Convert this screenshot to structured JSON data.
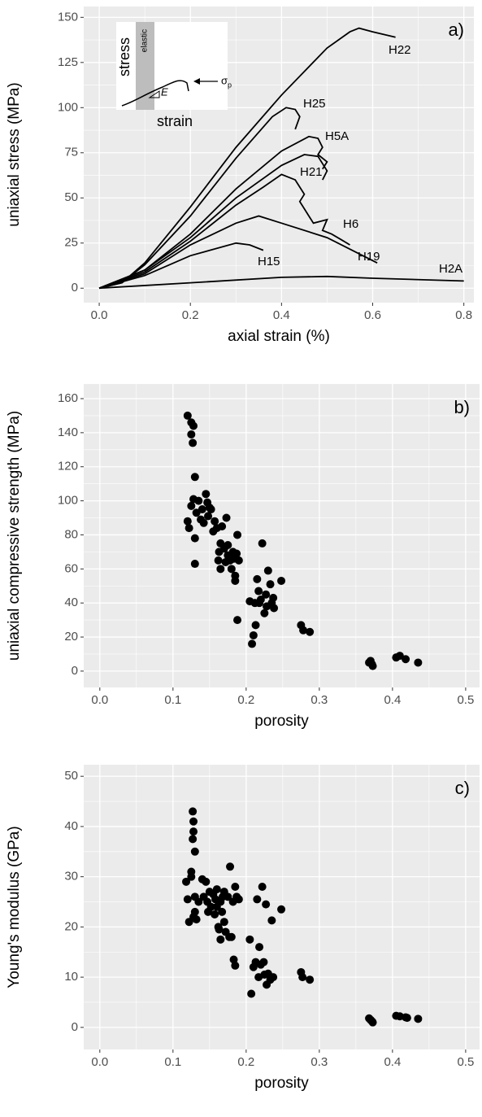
{
  "chart_data": [
    {
      "type": "line",
      "panel_label": "a)",
      "xlabel": "axial strain (%)",
      "ylabel": "uniaxial stress (MPa)",
      "xlim": [
        -0.034,
        0.822
      ],
      "ylim": [
        -8,
        156
      ],
      "xticks": [
        {
          "value": 0,
          "label": "0.0"
        },
        0.2,
        0.4,
        0.6,
        0.8
      ],
      "yticks": [
        0,
        25,
        50,
        75,
        100,
        125,
        150
      ],
      "grid": true,
      "color": "#000000",
      "inset": {
        "ylabel": "stress",
        "xlabel": "strain",
        "band_label": "elastic",
        "slope_label": "E",
        "peak_label": "σ",
        "peak_subscript": "p"
      },
      "series": [
        {
          "name": "H22",
          "x": [
            0,
            0.05,
            0.1,
            0.2,
            0.3,
            0.4,
            0.5,
            0.55,
            0.57,
            0.6,
            0.65
          ],
          "values": [
            0,
            3,
            14,
            45,
            78,
            107,
            133,
            142,
            144,
            142,
            139
          ]
        },
        {
          "name": "H25",
          "x": [
            0,
            0.05,
            0.1,
            0.2,
            0.3,
            0.38,
            0.41,
            0.43,
            0.44,
            0.43
          ],
          "values": [
            0,
            3,
            13,
            40,
            72,
            95,
            100,
            99,
            95,
            88
          ]
        },
        {
          "name": "H5A",
          "x": [
            0,
            0.1,
            0.2,
            0.3,
            0.4,
            0.46,
            0.48,
            0.49,
            0.48,
            0.5,
            0.49
          ],
          "values": [
            0,
            10,
            30,
            55,
            76,
            84,
            83,
            78,
            74,
            70,
            66
          ]
        },
        {
          "name": "H21",
          "x": [
            0,
            0.1,
            0.2,
            0.3,
            0.4,
            0.45,
            0.48,
            0.5,
            0.49
          ],
          "values": [
            0,
            10,
            28,
            50,
            68,
            74,
            73,
            65,
            60
          ]
        },
        {
          "name": "H6",
          "x": [
            0,
            0.1,
            0.2,
            0.3,
            0.36,
            0.4,
            0.43,
            0.45,
            0.44,
            0.46,
            0.47,
            0.5,
            0.49,
            0.51,
            0.53,
            0.55
          ],
          "values": [
            0,
            9,
            26,
            46,
            56,
            63,
            60,
            52,
            48,
            40,
            36,
            38,
            32,
            30,
            27,
            24
          ]
        },
        {
          "name": "H19",
          "x": [
            0,
            0.1,
            0.2,
            0.3,
            0.35,
            0.4,
            0.5,
            0.61
          ],
          "values": [
            0,
            8,
            24,
            36,
            40,
            36,
            28,
            14
          ]
        },
        {
          "name": "H15",
          "x": [
            0,
            0.1,
            0.2,
            0.3,
            0.33,
            0.36
          ],
          "values": [
            0,
            7,
            18,
            25,
            24,
            21
          ]
        },
        {
          "name": "H2A",
          "x": [
            0,
            0.2,
            0.4,
            0.5,
            0.6,
            0.8
          ],
          "values": [
            0,
            3,
            6,
            6.5,
            5.5,
            4
          ]
        }
      ]
    },
    {
      "type": "scatter",
      "panel_label": "b)",
      "xlabel": "porosity",
      "ylabel": "uniaxial compressive strength (MPa)",
      "xlim": [
        -0.022,
        0.519
      ],
      "ylim": [
        -9.6,
        168.6
      ],
      "xticks": [
        {
          "value": 0,
          "label": "0.0"
        },
        0.1,
        0.2,
        0.3,
        0.4,
        0.5
      ],
      "yticks": [
        0,
        20,
        40,
        60,
        80,
        100,
        120,
        140,
        160
      ],
      "grid": true,
      "color": "#000000",
      "x": [
        0.12,
        0.125,
        0.128,
        0.125,
        0.127,
        0.12,
        0.122,
        0.125,
        0.128,
        0.13,
        0.13,
        0.13,
        0.132,
        0.135,
        0.138,
        0.14,
        0.142,
        0.145,
        0.147,
        0.148,
        0.15,
        0.152,
        0.155,
        0.157,
        0.16,
        0.162,
        0.163,
        0.165,
        0.165,
        0.167,
        0.17,
        0.172,
        0.173,
        0.175,
        0.175,
        0.178,
        0.18,
        0.182,
        0.183,
        0.185,
        0.185,
        0.187,
        0.188,
        0.188,
        0.19,
        0.205,
        0.208,
        0.21,
        0.212,
        0.213,
        0.215,
        0.217,
        0.218,
        0.22,
        0.222,
        0.225,
        0.227,
        0.228,
        0.23,
        0.233,
        0.235,
        0.237,
        0.238,
        0.248,
        0.275,
        0.278,
        0.287,
        0.368,
        0.37,
        0.372,
        0.373,
        0.405,
        0.41,
        0.418,
        0.435
      ],
      "values": [
        150,
        146,
        144,
        139,
        134,
        88,
        84,
        97,
        101,
        63,
        78,
        114,
        93,
        100,
        89,
        95,
        87,
        104,
        99,
        91,
        96,
        95,
        82,
        88,
        84,
        65,
        70,
        60,
        75,
        85,
        72,
        64,
        90,
        68,
        74,
        65,
        60,
        70,
        66,
        56,
        53,
        69,
        30,
        80,
        65,
        41,
        16,
        21,
        40,
        27,
        54,
        47,
        40,
        42,
        75,
        34,
        45,
        38,
        59,
        51,
        40,
        43,
        37,
        53,
        27,
        24,
        23,
        5,
        6,
        4,
        3,
        8,
        9,
        7,
        5
      ]
    },
    {
      "type": "scatter",
      "panel_label": "c)",
      "xlabel": "porosity",
      "ylabel": "Young's modulus (GPa)",
      "xlim": [
        -0.022,
        0.519
      ],
      "ylim": [
        -4.4,
        52.3
      ],
      "xticks": [
        {
          "value": 0,
          "label": "0.0"
        },
        0.1,
        0.2,
        0.3,
        0.4,
        0.5
      ],
      "yticks": [
        0,
        10,
        20,
        30,
        40,
        50
      ],
      "grid": true,
      "color": "#000000",
      "x": [
        0.118,
        0.12,
        0.122,
        0.125,
        0.127,
        0.128,
        0.128,
        0.127,
        0.13,
        0.128,
        0.13,
        0.13,
        0.132,
        0.125,
        0.135,
        0.14,
        0.142,
        0.145,
        0.147,
        0.148,
        0.15,
        0.152,
        0.155,
        0.157,
        0.158,
        0.16,
        0.16,
        0.162,
        0.163,
        0.165,
        0.165,
        0.167,
        0.168,
        0.17,
        0.17,
        0.172,
        0.175,
        0.177,
        0.178,
        0.18,
        0.182,
        0.183,
        0.185,
        0.185,
        0.187,
        0.19,
        0.205,
        0.207,
        0.21,
        0.213,
        0.215,
        0.217,
        0.218,
        0.22,
        0.222,
        0.224,
        0.225,
        0.227,
        0.228,
        0.23,
        0.233,
        0.235,
        0.237,
        0.248,
        0.275,
        0.277,
        0.287,
        0.368,
        0.37,
        0.372,
        0.373,
        0.405,
        0.41,
        0.418,
        0.42,
        0.435
      ],
      "values": [
        29,
        25.5,
        21,
        31,
        43,
        41,
        39,
        37.5,
        35,
        22,
        23,
        26,
        21.5,
        30,
        25,
        29.5,
        26,
        29,
        25,
        23,
        27,
        24,
        26.5,
        22.5,
        25.5,
        27.5,
        24,
        20,
        19.5,
        25,
        17.5,
        23,
        26,
        21,
        27,
        19,
        26,
        18,
        32,
        18,
        25,
        13.5,
        12.3,
        28,
        26,
        25.5,
        17.5,
        6.7,
        12,
        13,
        25.5,
        10,
        16,
        12.5,
        28,
        13,
        10.5,
        24.5,
        8.5,
        10.7,
        9.5,
        21.3,
        10,
        23.5,
        11,
        10,
        9.5,
        1.8,
        1.5,
        1.2,
        1.0,
        2.3,
        2.2,
        2.0,
        1.9,
        1.7
      ]
    }
  ]
}
